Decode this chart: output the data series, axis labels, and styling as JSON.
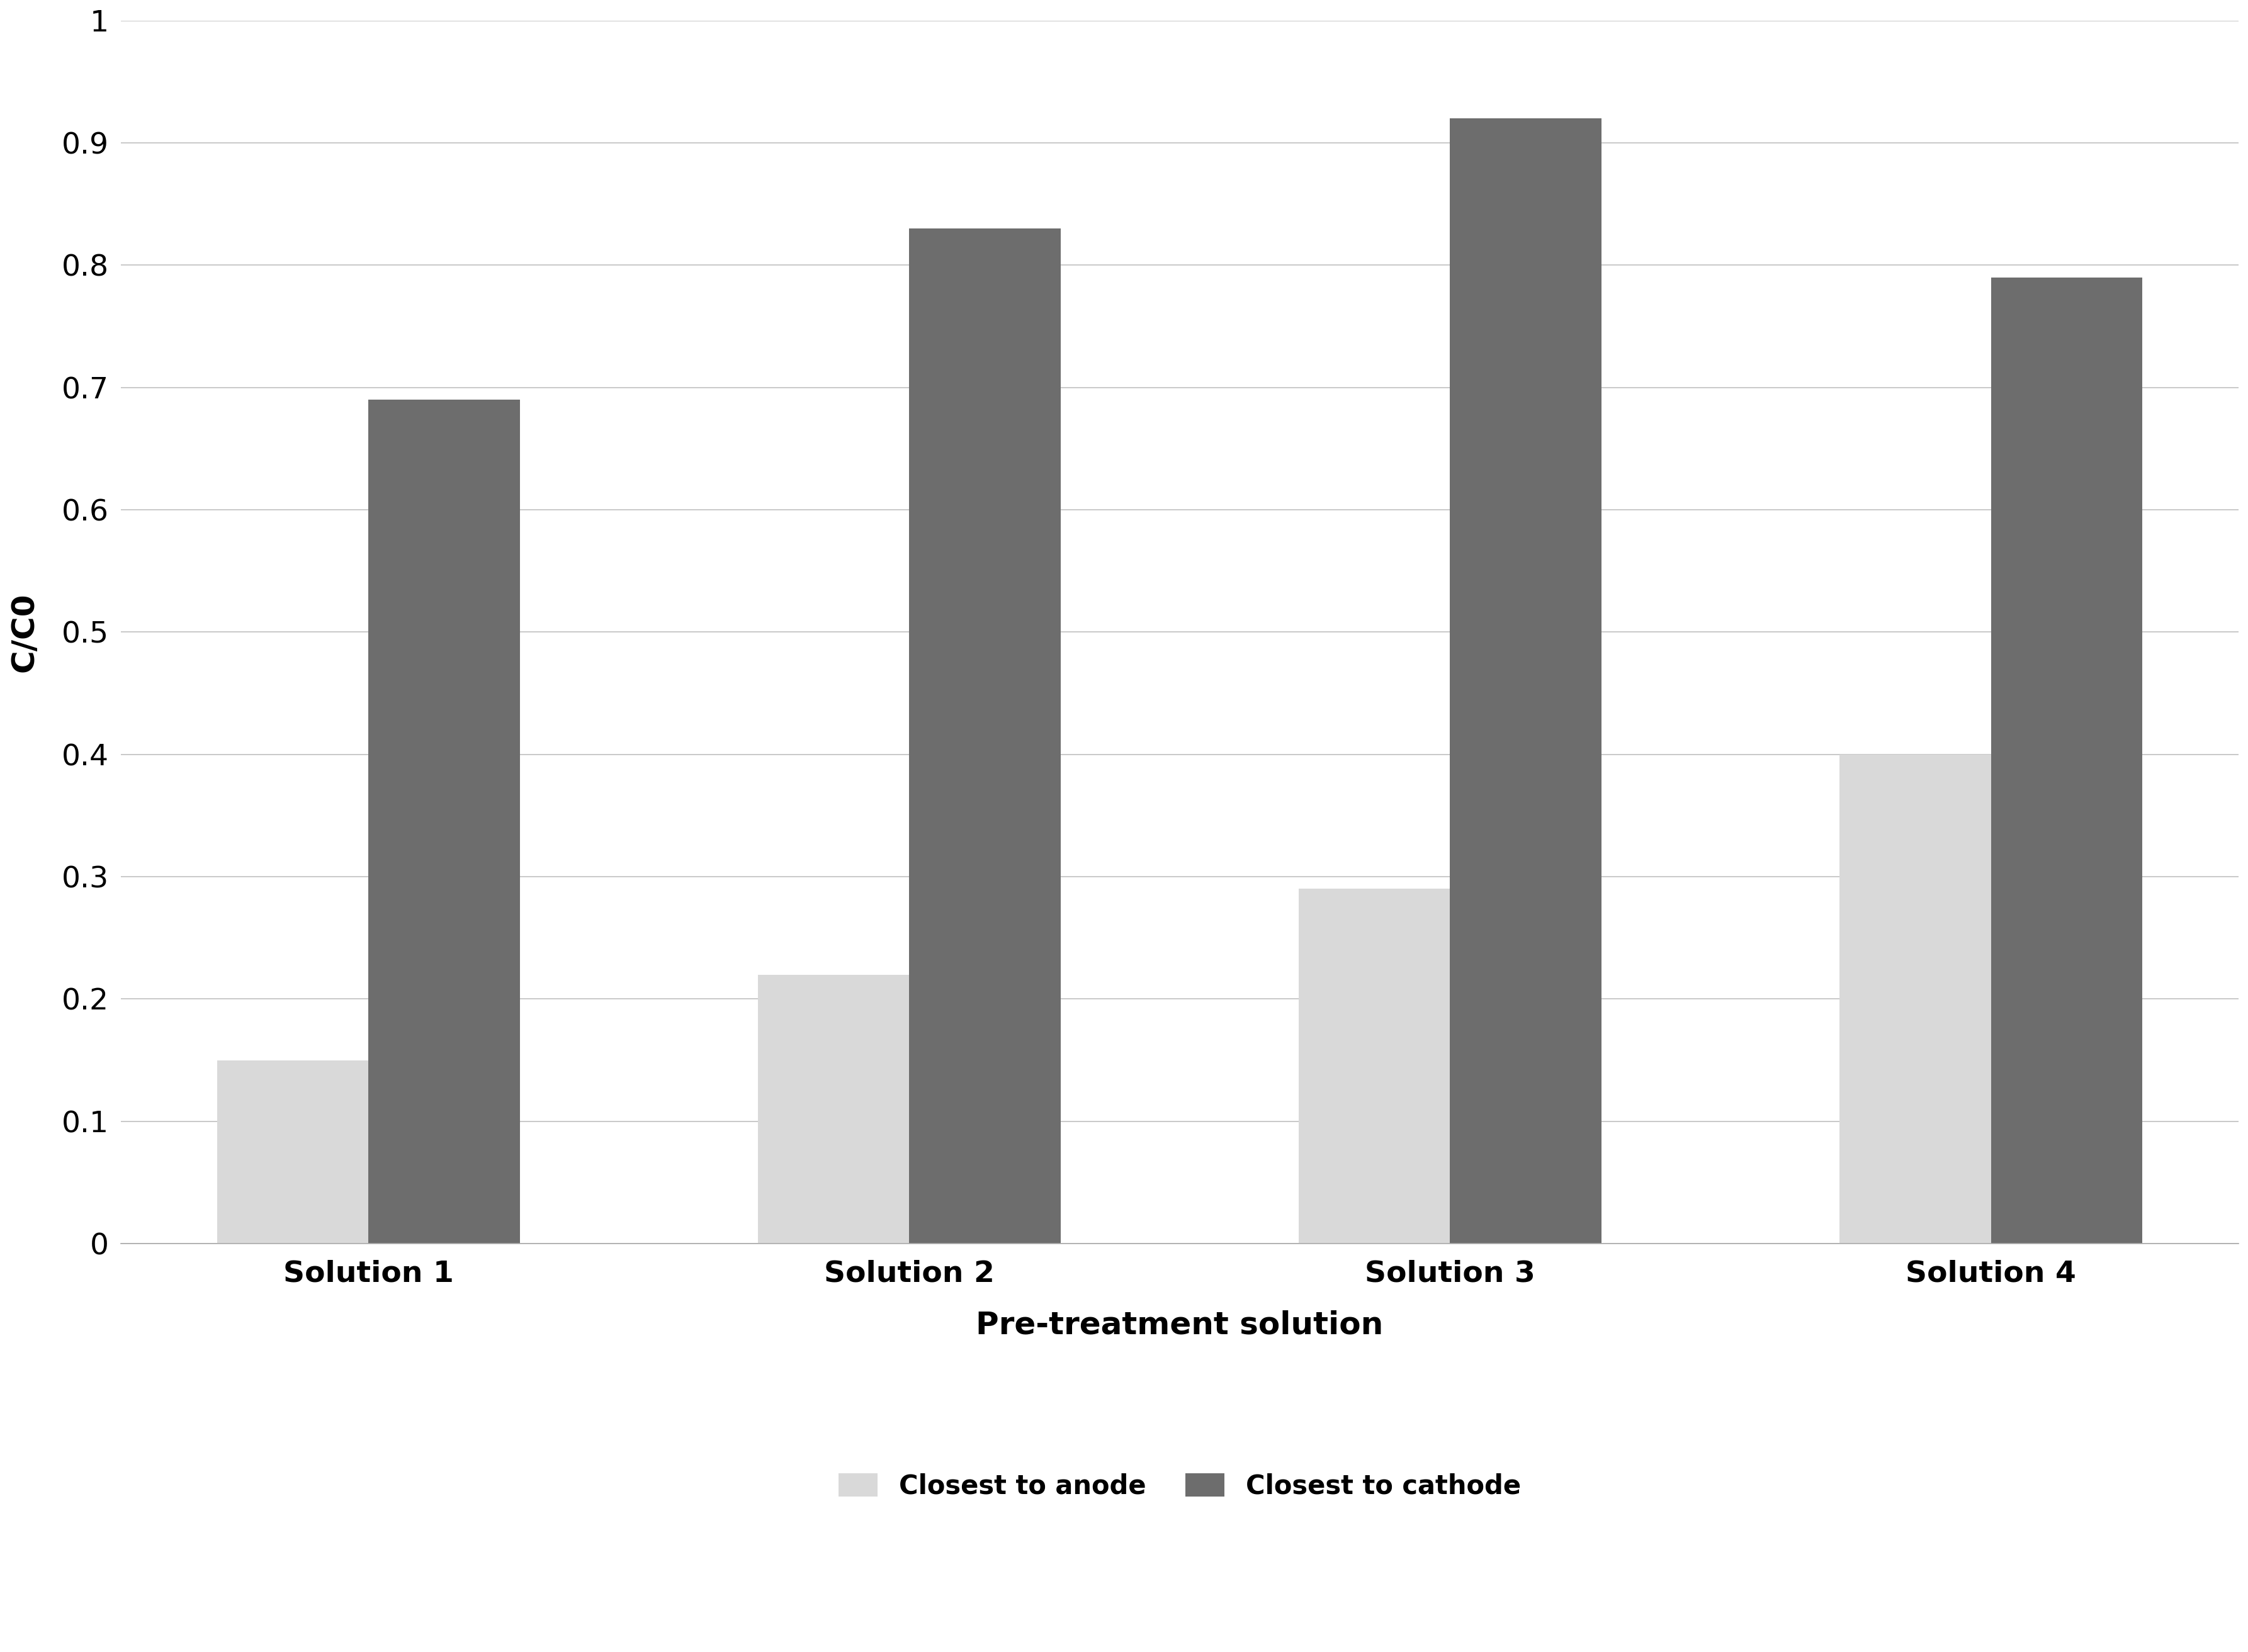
{
  "categories": [
    "Solution 1",
    "Solution 2",
    "Solution 3",
    "Solution 4"
  ],
  "anode_values": [
    0.15,
    0.22,
    0.29,
    0.4
  ],
  "cathode_values": [
    0.69,
    0.83,
    0.92,
    0.79
  ],
  "anode_color": "#d9d9d9",
  "cathode_color": "#6d6d6d",
  "ylabel": "C/C0",
  "xlabel": "Pre-treatment solution",
  "ylim": [
    0,
    1.0
  ],
  "yticks": [
    0,
    0.1,
    0.2,
    0.3,
    0.4,
    0.5,
    0.6,
    0.7,
    0.8,
    0.9,
    1
  ],
  "legend_anode": "Closest to anode",
  "legend_cathode": "Closest to cathode",
  "bar_width": 0.28,
  "background_color": "#ffffff",
  "label_fontsize": 36,
  "tick_fontsize": 34,
  "legend_fontsize": 30,
  "axis_label_fontsize": 36
}
